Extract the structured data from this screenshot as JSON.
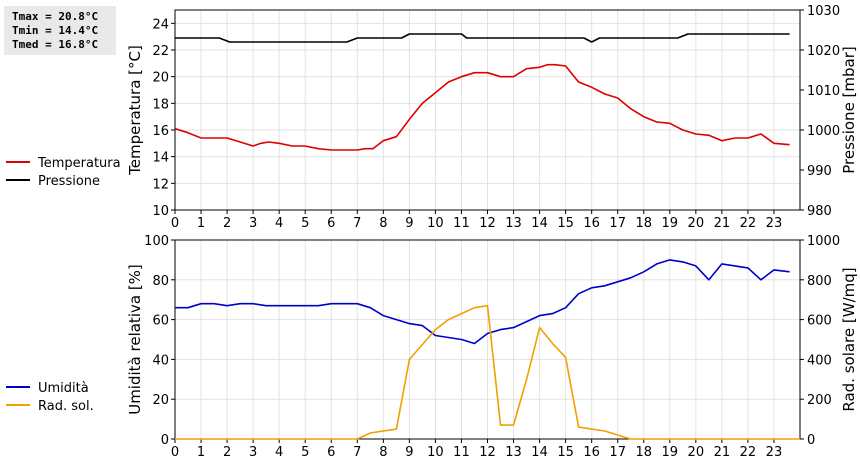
{
  "stats": {
    "tmax": "Tmax = 20.8°C",
    "tmin": "Tmin = 14.4°C",
    "tmed": "Tmed = 16.8°C"
  },
  "chart_data": [
    {
      "type": "line",
      "grid": true,
      "xlim": [
        0,
        24
      ],
      "x_ticks": [
        0,
        1,
        2,
        3,
        4,
        5,
        6,
        7,
        8,
        9,
        10,
        11,
        12,
        13,
        14,
        15,
        16,
        17,
        18,
        19,
        20,
        21,
        22,
        23
      ],
      "ylabel": "Temperatura [°C]",
      "y2label": "Pressione [mbar]",
      "ylim": [
        10,
        25
      ],
      "y_ticks": [
        10,
        12,
        14,
        16,
        18,
        20,
        22,
        24
      ],
      "y2lim": [
        980,
        1030
      ],
      "y2_ticks": [
        980,
        990,
        1000,
        1010,
        1020,
        1030
      ],
      "legend_position": "left",
      "series": [
        {
          "name": "Temperatura",
          "axis": "left",
          "color": "#dd0000",
          "x": [
            0,
            0.5,
            1,
            1.5,
            2,
            2.5,
            3,
            3.3,
            3.6,
            4,
            4.5,
            5,
            5.5,
            6,
            6.5,
            7,
            7.3,
            7.6,
            8,
            8.5,
            9,
            9.5,
            10,
            10.5,
            11,
            11.5,
            12,
            12.5,
            13,
            13.5,
            14,
            14.3,
            14.6,
            15,
            15.5,
            16,
            16.5,
            17,
            17.5,
            18,
            18.5,
            19,
            19.5,
            20,
            20.5,
            21,
            21.5,
            22,
            22.5,
            23,
            23.6
          ],
          "y": [
            16.1,
            15.8,
            15.4,
            15.4,
            15.4,
            15.1,
            14.8,
            15.0,
            15.1,
            15.0,
            14.8,
            14.8,
            14.6,
            14.5,
            14.5,
            14.5,
            14.6,
            14.6,
            15.2,
            15.5,
            16.8,
            18.0,
            18.8,
            19.6,
            20.0,
            20.3,
            20.3,
            20.0,
            20.0,
            20.6,
            20.7,
            20.9,
            20.9,
            20.8,
            19.6,
            19.2,
            18.7,
            18.4,
            17.6,
            17.0,
            16.6,
            16.5,
            16.0,
            15.7,
            15.6,
            15.2,
            15.4,
            15.4,
            15.7,
            15.0,
            14.9
          ]
        },
        {
          "name": "Pressione",
          "axis": "right",
          "color": "#000000",
          "x": [
            0,
            1.7,
            2.1,
            2.5,
            6.6,
            7,
            8.7,
            9,
            11,
            11.2,
            15.7,
            16,
            16.3,
            16.7,
            19.3,
            19.7,
            23.6
          ],
          "y": [
            1023,
            1023,
            1022,
            1022,
            1022,
            1023,
            1023,
            1024,
            1024,
            1023,
            1023,
            1022,
            1023,
            1023,
            1023,
            1024,
            1024
          ]
        }
      ]
    },
    {
      "type": "line",
      "grid": true,
      "xlim": [
        0,
        24
      ],
      "x_ticks": [
        0,
        1,
        2,
        3,
        4,
        5,
        6,
        7,
        8,
        9,
        10,
        11,
        12,
        13,
        14,
        15,
        16,
        17,
        18,
        19,
        20,
        21,
        22,
        23
      ],
      "ylabel": "Umidità relativa [%]",
      "y2label": "Rad. solare [W/mq]",
      "ylim": [
        0,
        100
      ],
      "y_ticks": [
        0,
        20,
        40,
        60,
        80,
        100
      ],
      "y2lim": [
        0,
        1000
      ],
      "y2_ticks": [
        0,
        200,
        400,
        600,
        800,
        1000
      ],
      "legend_position": "left",
      "series": [
        {
          "name": "Umidità",
          "axis": "left",
          "color": "#0000cc",
          "x": [
            0,
            0.5,
            1,
            1.5,
            2,
            2.5,
            3,
            3.5,
            4,
            5,
            5.5,
            6,
            6.5,
            7,
            7.5,
            8,
            8.5,
            9,
            9.5,
            10,
            10.5,
            11,
            11.5,
            12,
            12.5,
            13,
            13.5,
            14,
            14.5,
            15,
            15.5,
            16,
            16.5,
            17,
            17.5,
            18,
            18.5,
            19,
            19.5,
            20,
            20.5,
            21,
            21.5,
            22,
            22.5,
            23,
            23.6
          ],
          "y": [
            66,
            66,
            68,
            68,
            67,
            68,
            68,
            67,
            67,
            67,
            67,
            68,
            68,
            68,
            66,
            62,
            60,
            58,
            57,
            52,
            51,
            50,
            48,
            53,
            55,
            56,
            59,
            62,
            63,
            66,
            73,
            76,
            77,
            79,
            81,
            84,
            88,
            90,
            89,
            87,
            80,
            88,
            87,
            86,
            80,
            85,
            84
          ]
        },
        {
          "name": "Rad. sol.",
          "axis": "right",
          "color": "#f0a000",
          "x": [
            0,
            6,
            7,
            7.5,
            8,
            8.5,
            9,
            10,
            10.5,
            11,
            11.5,
            12,
            12.5,
            13,
            13.5,
            14,
            14.5,
            15,
            15.5,
            16,
            16.5,
            17,
            17.5,
            18,
            24
          ],
          "y": [
            0,
            0,
            0,
            30,
            40,
            50,
            400,
            550,
            600,
            630,
            660,
            670,
            70,
            70,
            300,
            560,
            480,
            410,
            60,
            50,
            40,
            20,
            0,
            0,
            0
          ]
        }
      ]
    }
  ]
}
